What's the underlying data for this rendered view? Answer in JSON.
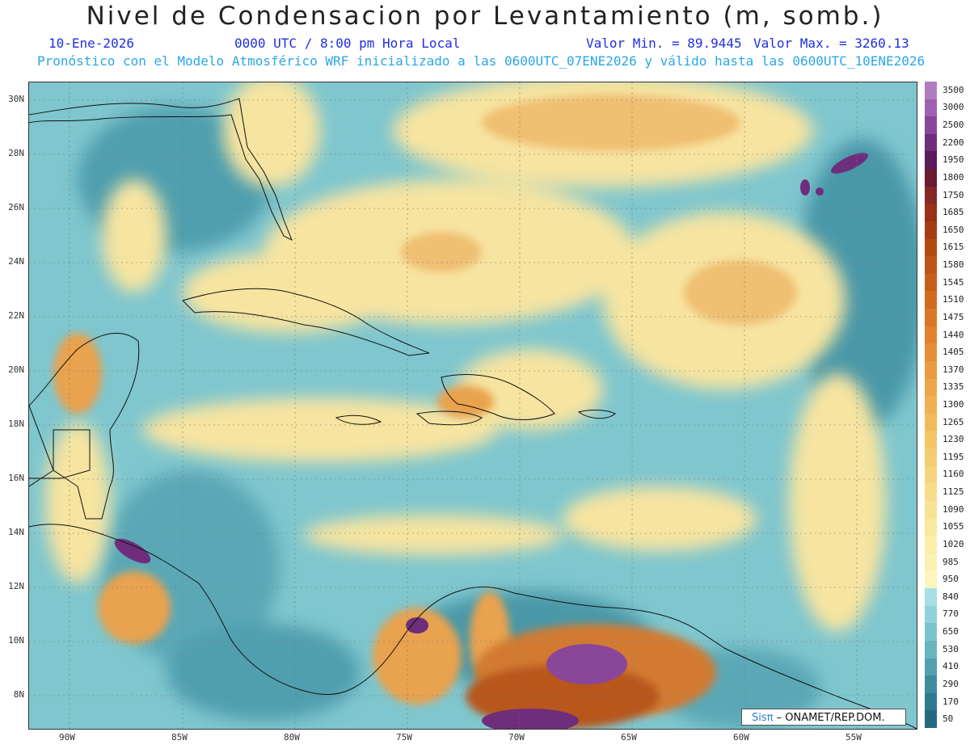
{
  "title": "Nivel de Condensacion por Levantamiento (m, somb.)",
  "date": "10-Ene-2026",
  "time": "0000 UTC / 8:00 pm Hora Local",
  "valmin": "Valor Min. = 89.9445",
  "valmax": "Valor Max. = 3260.13",
  "forecast": "Pronóstico con el Modelo Atmosférico WRF inicializado a las 0600UTC_07ENE2026 y válido hasta las  0600UTC_10ENE2026",
  "lat_labels": [
    "30N",
    "28N",
    "26N",
    "24N",
    "22N",
    "20N",
    "18N",
    "16N",
    "14N",
    "12N",
    "10N",
    "8N"
  ],
  "lon_labels": [
    "90W",
    "85W",
    "80W",
    "75W",
    "70W",
    "65W",
    "60W",
    "55W"
  ],
  "colorbar": {
    "labels": [
      "3500",
      "3000",
      "2500",
      "2200",
      "1950",
      "1800",
      "1750",
      "1685",
      "1650",
      "1615",
      "1580",
      "1545",
      "1510",
      "1475",
      "1440",
      "1405",
      "1370",
      "1335",
      "1300",
      "1265",
      "1230",
      "1195",
      "1160",
      "1125",
      "1090",
      "1055",
      "1020",
      "985",
      "950",
      "840",
      "770",
      "650",
      "530",
      "410",
      "290",
      "170",
      "50"
    ],
    "colors": [
      "#b07cc0",
      "#a060b0",
      "#8a4698",
      "#6e2e7c",
      "#5a1c5c",
      "#6b1a30",
      "#842828",
      "#993018",
      "#a53c14",
      "#b34a12",
      "#bf5416",
      "#c95e1a",
      "#d26a20",
      "#da7626",
      "#e0822e",
      "#e68e36",
      "#ea9a40",
      "#ee a64a",
      "#f0b052",
      "#f2ba5c",
      "#f4c466",
      "#f5cc72",
      "#f6d47e",
      "#f7dc8a",
      "#f8e294",
      "#f9e89e",
      "#faeea8",
      "#fbf2b2",
      "#fcf6bc",
      "#a8dfe6",
      "#8ed2da",
      "#7cc4cc",
      "#68b4bf",
      "#529fae",
      "#3f8c9e",
      "#2f7a8e",
      "#25697f"
    ]
  },
  "logo": {
    "brand": "Sisπ",
    "credit": " – ONAMET/REP.DOM."
  },
  "colors": {
    "ocean_base": "#7fc6ce",
    "yellow": "#f7e4a0",
    "orange": "#e9a24e",
    "brown": "#a3481c",
    "purple": "#6e2e7c",
    "dark_teal": "#3f8c9e"
  }
}
